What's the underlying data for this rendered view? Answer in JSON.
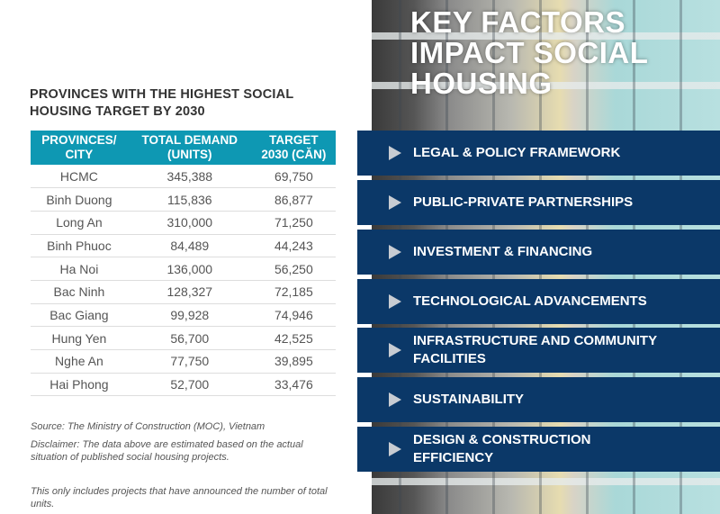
{
  "table_title": [
    "PROVINCES WITH THE HIGHEST SOCIAL",
    "HOUSING TARGET BY 2030"
  ],
  "headers": [
    [
      "PROVINCES/",
      "CITY"
    ],
    [
      "TOTAL DEMAND",
      "(UNITS)"
    ],
    [
      "TARGET",
      "2030 (CĂN)"
    ]
  ],
  "rows": [
    [
      "HCMC",
      "345,388",
      "69,750"
    ],
    [
      "Binh Duong",
      "115,836",
      "86,877"
    ],
    [
      "Long An",
      "310,000",
      "71,250"
    ],
    [
      "Binh Phuoc",
      "84,489",
      "44,243"
    ],
    [
      "Ha Noi",
      "136,000",
      "56,250"
    ],
    [
      "Bac Ninh",
      "128,327",
      "72,185"
    ],
    [
      "Bac Giang",
      "99,928",
      "74,946"
    ],
    [
      "Hung Yen",
      "56,700",
      "42,525"
    ],
    [
      "Nghe An",
      "77,750",
      "39,895"
    ],
    [
      "Hai Phong",
      "52,700",
      "33,476"
    ]
  ],
  "source": "Source: The Ministry of Construction (MOC), Vietnam",
  "disclaimer": "Disclaimer: The data above are estimated based on the actual situation of published social housing projects.",
  "note": "This only includes projects that have announced the number of total units.",
  "panel_title": [
    "KEY FACTORS",
    "IMPACT SOCIAL",
    "HOUSING"
  ],
  "factors": [
    "LEGAL & POLICY FRAMEWORK",
    "PUBLIC-PRIVATE PARTNERSHIPS",
    "INVESTMENT & FINANCING",
    "TECHNOLOGICAL ADVANCEMENTS",
    "INFRASTRUCTURE AND COMMUNITY FACILITIES",
    "SUSTAINABILITY",
    "DESIGN & CONSTRUCTION EFFICIENCY"
  ],
  "colors": {
    "header_teal": "#0e98b3",
    "navy": "#0b3868"
  }
}
